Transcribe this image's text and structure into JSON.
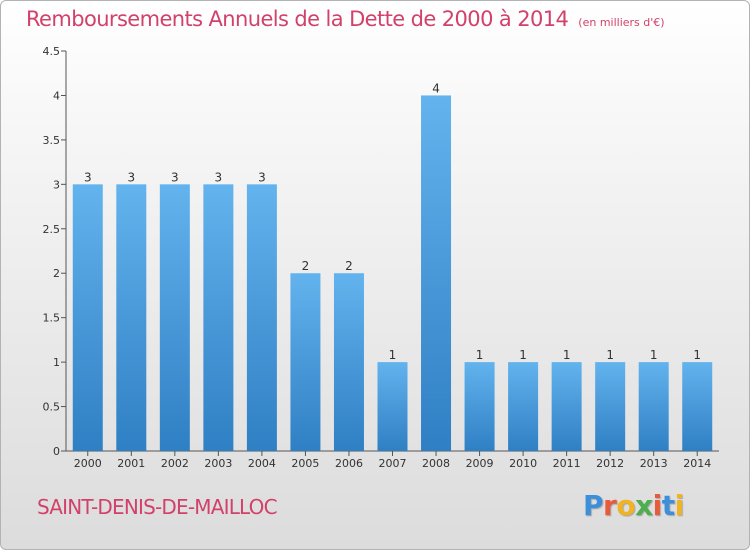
{
  "chart_data": {
    "type": "bar",
    "title": "Remboursements Annuels de la Dette de 2000 à 2014",
    "subtitle": "(en milliers d'€)",
    "categories": [
      "2000",
      "2001",
      "2002",
      "2003",
      "2004",
      "2005",
      "2006",
      "2007",
      "2008",
      "2009",
      "2010",
      "2011",
      "2012",
      "2013",
      "2014"
    ],
    "values": [
      3,
      3,
      3,
      3,
      3,
      2,
      2,
      1,
      4,
      1,
      1,
      1,
      1,
      1,
      1
    ],
    "data_labels": [
      "3",
      "3",
      "3",
      "3",
      "3",
      "2",
      "2",
      "1",
      "4",
      "1",
      "1",
      "1",
      "1",
      "1",
      "1"
    ],
    "ylim": [
      0,
      4.5
    ],
    "yticks": [
      0,
      0.5,
      1,
      1.5,
      2,
      2.5,
      3,
      3.5,
      4,
      4.5
    ],
    "ytick_labels": [
      "0",
      "0.5",
      "1",
      "1.5",
      "2",
      "2.5",
      "3",
      "3.5",
      "4",
      "4.5"
    ],
    "grid": false,
    "xlabel": "",
    "ylabel": "",
    "colors": {
      "bar_light": "#63b3ee",
      "bar_dark": "#2f7fc4",
      "title": "#d2416a"
    }
  },
  "footer": {
    "commune": "SAINT-DENIS-DE-MAILLOC"
  },
  "brand": {
    "letters": [
      "P",
      "r",
      "o",
      "x",
      "i",
      "t",
      "i"
    ],
    "colors": [
      "#3d8fd9",
      "#e85a3c",
      "#f0b323",
      "#4cae4c",
      "#e85a3c",
      "#3d8fd9",
      "#f0b323"
    ]
  }
}
